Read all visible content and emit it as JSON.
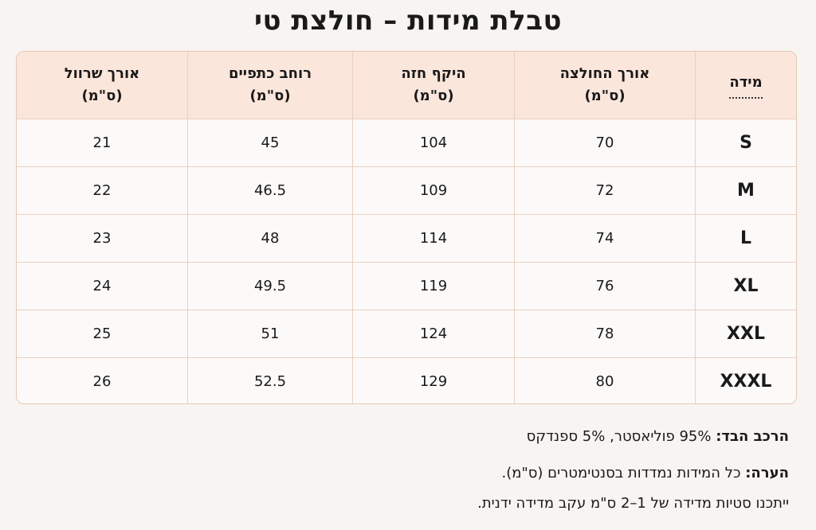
{
  "title": "טבלת מידות – חולצת טי",
  "table": {
    "headers": [
      {
        "line1": "מידה",
        "line2": ""
      },
      {
        "line1": "אורך החולצה",
        "line2": "(ס\"מ)"
      },
      {
        "line1": "היקף חזה",
        "line2": "(ס\"מ)"
      },
      {
        "line1": "רוחב כתפיים",
        "line2": "(ס\"מ)"
      },
      {
        "line1": "אורך שרוול",
        "line2": "(ס\"מ)"
      }
    ],
    "rows": [
      {
        "size": "S",
        "length": "70",
        "chest": "104",
        "shoulders": "45",
        "sleeve": "21"
      },
      {
        "size": "M",
        "length": "72",
        "chest": "109",
        "shoulders": "46.5",
        "sleeve": "22"
      },
      {
        "size": "L",
        "length": "74",
        "chest": "114",
        "shoulders": "48",
        "sleeve": "23"
      },
      {
        "size": "XL",
        "length": "76",
        "chest": "119",
        "shoulders": "49.5",
        "sleeve": "24"
      },
      {
        "size": "XXL",
        "length": "78",
        "chest": "124",
        "shoulders": "51",
        "sleeve": "25"
      },
      {
        "size": "XXXL",
        "length": "80",
        "chest": "129",
        "shoulders": "52.5",
        "sleeve": "26"
      }
    ]
  },
  "notes": {
    "fabric_label": "הרכב הבד:",
    "fabric_value": "95% פוליאסטר, 5% ספנדקס",
    "note_label": "הערה:",
    "note_value": "כל המידות נמדדות בסנטימטרים (ס\"מ).",
    "tolerance": "ייתכנו סטיות מדידה של 1–2 ס\"מ עקב מדידה ידנית."
  },
  "colors": {
    "background": "#f8f4f1",
    "header_bg": "#fbe6db",
    "border": "#e6c8b6"
  }
}
